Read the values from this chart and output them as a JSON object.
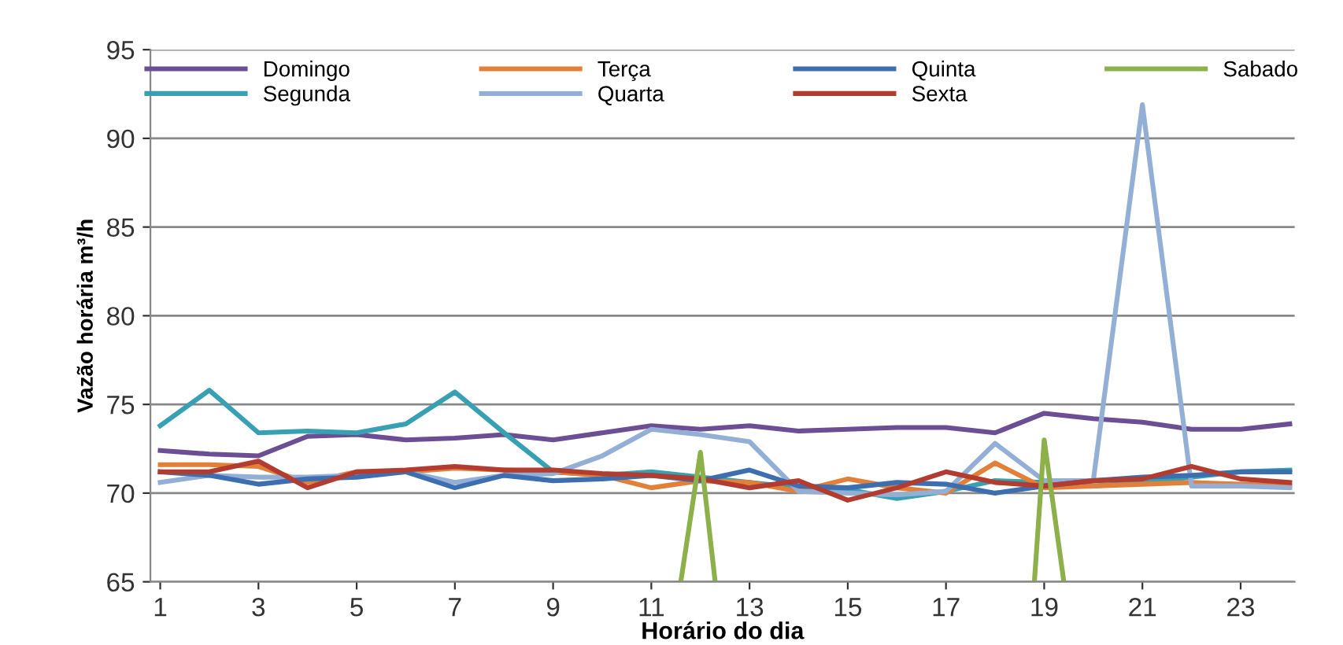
{
  "chart_data": {
    "type": "line",
    "xlabel": "Horário do dia",
    "ylabel": "Vazão horária m³/h",
    "x": [
      1,
      2,
      3,
      4,
      5,
      6,
      7,
      8,
      9,
      10,
      11,
      12,
      13,
      14,
      15,
      16,
      17,
      18,
      19,
      20,
      21,
      22,
      23,
      24
    ],
    "xlim": [
      0.8,
      24.1
    ],
    "xticks": [
      1,
      3,
      5,
      7,
      9,
      11,
      13,
      15,
      17,
      19,
      21,
      23
    ],
    "ylim": [
      65,
      95
    ],
    "yticks": [
      65,
      70,
      75,
      80,
      85,
      90,
      95
    ],
    "grid": "y",
    "legend": "top",
    "marker": "none",
    "line_style": "solid",
    "series": [
      {
        "name": "Domingo",
        "color": "#6b4e94",
        "values": [
          72.4,
          72.2,
          72.1,
          73.2,
          73.3,
          73.0,
          73.1,
          73.3,
          73.0,
          73.4,
          73.8,
          73.6,
          73.8,
          73.5,
          73.6,
          73.7,
          73.7,
          73.4,
          74.5,
          74.2,
          74.0,
          73.6,
          73.6,
          73.9
        ]
      },
      {
        "name": "Segunda",
        "color": "#37a0b2",
        "values": [
          73.8,
          75.8,
          73.4,
          73.5,
          73.4,
          73.9,
          75.7,
          73.4,
          71.2,
          71.0,
          71.2,
          70.9,
          70.6,
          70.3,
          70.2,
          69.7,
          70.1,
          70.7,
          70.6,
          70.4,
          70.6,
          70.9,
          71.2,
          71.3
        ]
      },
      {
        "name": "Terça",
        "color": "#e2803a",
        "values": [
          71.6,
          71.6,
          71.5,
          70.6,
          71.2,
          71.2,
          71.4,
          71.3,
          71.2,
          71.0,
          70.3,
          70.7,
          70.6,
          70.1,
          70.8,
          70.3,
          70.0,
          71.7,
          70.3,
          70.4,
          70.5,
          70.6,
          70.5,
          70.4
        ]
      },
      {
        "name": "Quarta",
        "color": "#93afd6",
        "values": [
          70.6,
          71.0,
          70.9,
          70.9,
          71.0,
          71.2,
          70.6,
          71.0,
          71.1,
          72.1,
          73.6,
          73.3,
          72.9,
          70.1,
          70.0,
          69.9,
          70.1,
          72.8,
          70.7,
          70.7,
          91.9,
          70.4,
          70.4,
          70.3
        ]
      },
      {
        "name": "Quinta",
        "color": "#3d6eaf",
        "values": [
          71.2,
          71.0,
          70.5,
          70.8,
          70.9,
          71.2,
          70.3,
          71.0,
          70.7,
          70.8,
          71.0,
          70.7,
          71.3,
          70.4,
          70.3,
          70.6,
          70.5,
          70.0,
          70.4,
          70.7,
          70.9,
          71.0,
          71.2,
          71.2
        ]
      },
      {
        "name": "Sexta",
        "color": "#b23c30",
        "values": [
          71.2,
          71.2,
          71.8,
          70.3,
          71.2,
          71.3,
          71.5,
          71.3,
          71.3,
          71.1,
          71.0,
          70.8,
          70.3,
          70.7,
          69.6,
          70.3,
          71.2,
          70.6,
          70.4,
          70.7,
          70.8,
          71.5,
          70.8,
          70.6
        ]
      },
      {
        "name": "Sabado",
        "color": "#8cb04a",
        "x": [
          11.6,
          12,
          12.3,
          15.5,
          18.8,
          19,
          19.4
        ],
        "values": [
          65,
          72.3,
          65,
          null,
          65,
          73.0,
          65
        ]
      }
    ]
  }
}
